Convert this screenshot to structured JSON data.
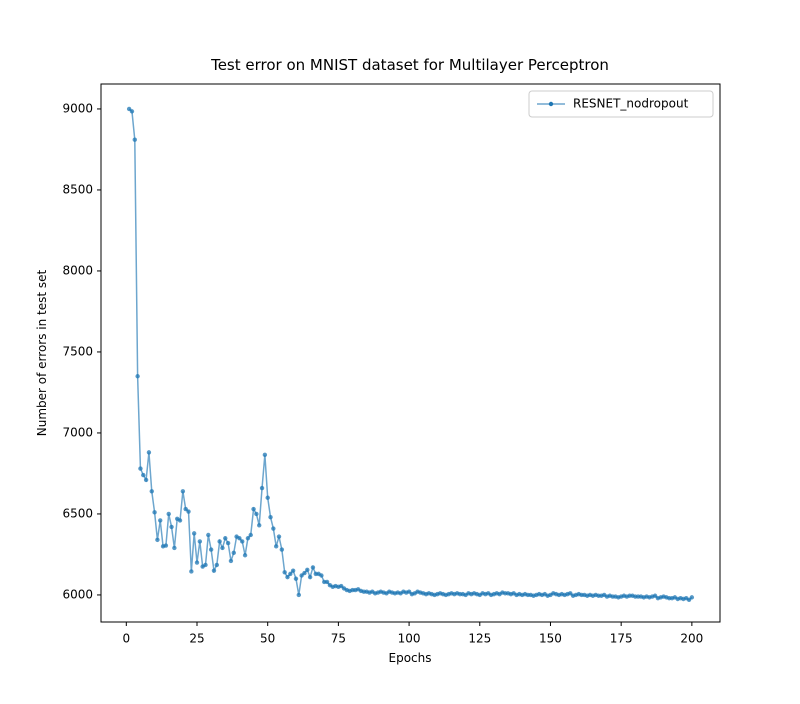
{
  "chart_data": {
    "type": "line",
    "title": "Test error on MNIST dataset for Multilayer Perceptron",
    "x_label": "Epochs",
    "y_label": "Number of errors in test set",
    "x": [
      1,
      2,
      3,
      4,
      5,
      6,
      7,
      8,
      9,
      10,
      11,
      12,
      13,
      14,
      15,
      16,
      17,
      18,
      19,
      20,
      21,
      22,
      23,
      24,
      25,
      26,
      27,
      28,
      29,
      30,
      31,
      32,
      33,
      34,
      35,
      36,
      37,
      38,
      39,
      40,
      41,
      42,
      43,
      44,
      45,
      46,
      47,
      48,
      49,
      50,
      51,
      52,
      53,
      54,
      55,
      56,
      57,
      58,
      59,
      60,
      61,
      62,
      63,
      64,
      65,
      66,
      67,
      68,
      69,
      70,
      71,
      72,
      73,
      74,
      75,
      76,
      77,
      78,
      79,
      80,
      81,
      82,
      83,
      84,
      85,
      86,
      87,
      88,
      89,
      90,
      91,
      92,
      93,
      94,
      95,
      96,
      97,
      98,
      99,
      100,
      101,
      102,
      103,
      104,
      105,
      106,
      107,
      108,
      109,
      110,
      111,
      112,
      113,
      114,
      115,
      116,
      117,
      118,
      119,
      120,
      121,
      122,
      123,
      124,
      125,
      126,
      127,
      128,
      129,
      130,
      131,
      132,
      133,
      134,
      135,
      136,
      137,
      138,
      139,
      140,
      141,
      142,
      143,
      144,
      145,
      146,
      147,
      148,
      149,
      150,
      151,
      152,
      153,
      154,
      155,
      156,
      157,
      158,
      159,
      160,
      161,
      162,
      163,
      164,
      165,
      166,
      167,
      168,
      169,
      170,
      171,
      172,
      173,
      174,
      175,
      176,
      177,
      178,
      179,
      180,
      181,
      182,
      183,
      184,
      185,
      186,
      187,
      188,
      189,
      190,
      191,
      192,
      193,
      194,
      195,
      196,
      197,
      198,
      199,
      200
    ],
    "series": [
      {
        "name": "RESNET_nodropout",
        "color": "#1f77b4",
        "values": [
          9000,
          8985,
          8810,
          7350,
          6780,
          6740,
          6710,
          6880,
          6640,
          6510,
          6340,
          6460,
          6300,
          6305,
          6500,
          6420,
          6290,
          6470,
          6460,
          6640,
          6530,
          6515,
          6145,
          6380,
          6200,
          6330,
          6175,
          6185,
          6370,
          6280,
          6150,
          6185,
          6330,
          6290,
          6350,
          6320,
          6210,
          6260,
          6360,
          6350,
          6330,
          6245,
          6350,
          6370,
          6530,
          6500,
          6430,
          6660,
          6865,
          6600,
          6480,
          6410,
          6300,
          6360,
          6280,
          6140,
          6110,
          6130,
          6150,
          6100,
          6000,
          6120,
          6135,
          6155,
          6110,
          6170,
          6130,
          6130,
          6120,
          6080,
          6080,
          6060,
          6050,
          6055,
          6050,
          6055,
          6040,
          6030,
          6025,
          6030,
          6030,
          6035,
          6025,
          6020,
          6020,
          6015,
          6020,
          6010,
          6015,
          6020,
          6015,
          6010,
          6020,
          6015,
          6010,
          6015,
          6010,
          6020,
          6015,
          6020,
          6005,
          6010,
          6020,
          6015,
          6010,
          6005,
          6010,
          6005,
          6000,
          6005,
          6010,
          6005,
          6000,
          6005,
          6010,
          6005,
          6010,
          6005,
          6005,
          6000,
          6010,
          6005,
          6010,
          6005,
          6000,
          6010,
          6005,
          6010,
          6000,
          6005,
          6010,
          6005,
          6015,
          6010,
          6010,
          6005,
          6010,
          6000,
          6005,
          6000,
          6005,
          6000,
          6000,
          5995,
          6000,
          6005,
          6000,
          6005,
          5995,
          6000,
          6010,
          6005,
          6000,
          6005,
          6000,
          6005,
          6010,
          5995,
          6000,
          6005,
          6000,
          6000,
          5995,
          6000,
          5995,
          6000,
          5995,
          5995,
          6000,
          5990,
          5995,
          5990,
          5990,
          5985,
          5990,
          5995,
          5990,
          5995,
          5995,
          5990,
          5990,
          5990,
          5985,
          5990,
          5985,
          5990,
          5995,
          5980,
          5985,
          5990,
          5985,
          5980,
          5980,
          5985,
          5975,
          5980,
          5975,
          5980,
          5970,
          5985
        ]
      }
    ],
    "xlim": [
      -8.95,
      209.95
    ],
    "ylim": [
      5833,
      9154
    ],
    "xticks": [
      0,
      25,
      50,
      75,
      100,
      125,
      150,
      175,
      200
    ],
    "yticks": [
      6000,
      6500,
      7000,
      7500,
      8000,
      8500,
      9000
    ],
    "legend": "upper right"
  }
}
